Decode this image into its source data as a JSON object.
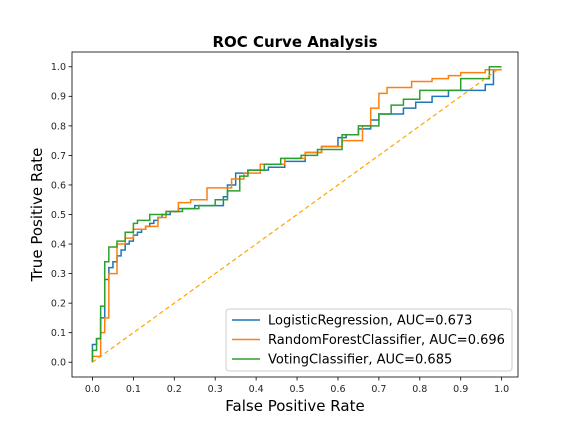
{
  "chart_data": {
    "type": "line",
    "title": "ROC Curve Analysis",
    "xlabel": "False Positive Rate",
    "ylabel": "True Positive Rate",
    "xlim": [
      -0.05,
      1.04
    ],
    "ylim": [
      -0.05,
      1.05
    ],
    "xticks": [
      0.0,
      0.1,
      0.2,
      0.3,
      0.4,
      0.5,
      0.6,
      0.7,
      0.8,
      0.9,
      1.0
    ],
    "yticks": [
      0.0,
      0.1,
      0.2,
      0.3,
      0.4,
      0.5,
      0.6,
      0.7,
      0.8,
      0.9,
      1.0
    ],
    "tick_labels": [
      "0.0",
      "0.1",
      "0.2",
      "0.3",
      "0.4",
      "0.5",
      "0.6",
      "0.7",
      "0.8",
      "0.9",
      "1.0"
    ],
    "grid": false,
    "legend_position": "lower-right",
    "series": [
      {
        "name": "LogisticRegression, AUC=0.673",
        "color": "#1f77b4",
        "x": [
          0.0,
          0.0,
          0.01,
          0.01,
          0.02,
          0.02,
          0.03,
          0.03,
          0.04,
          0.04,
          0.05,
          0.05,
          0.06,
          0.06,
          0.07,
          0.07,
          0.08,
          0.08,
          0.09,
          0.09,
          0.1,
          0.1,
          0.11,
          0.11,
          0.12,
          0.12,
          0.13,
          0.13,
          0.14,
          0.14,
          0.15,
          0.15,
          0.16,
          0.16,
          0.17,
          0.17,
          0.19,
          0.19,
          0.21,
          0.21,
          0.25,
          0.25,
          0.32,
          0.32,
          0.33,
          0.33,
          0.35,
          0.35,
          0.38,
          0.38,
          0.43,
          0.43,
          0.47,
          0.47,
          0.52,
          0.52,
          0.56,
          0.56,
          0.6,
          0.6,
          0.62,
          0.62,
          0.65,
          0.65,
          0.68,
          0.68,
          0.7,
          0.7,
          0.76,
          0.76,
          0.79,
          0.79,
          0.83,
          0.83,
          0.87,
          0.87,
          0.96,
          0.96,
          0.98,
          0.98,
          1.0
        ],
        "y": [
          0.0,
          0.06,
          0.06,
          0.08,
          0.08,
          0.15,
          0.15,
          0.28,
          0.28,
          0.32,
          0.32,
          0.34,
          0.34,
          0.36,
          0.36,
          0.38,
          0.38,
          0.4,
          0.4,
          0.41,
          0.41,
          0.43,
          0.43,
          0.44,
          0.44,
          0.45,
          0.45,
          0.46,
          0.46,
          0.47,
          0.47,
          0.48,
          0.48,
          0.49,
          0.49,
          0.5,
          0.5,
          0.51,
          0.51,
          0.52,
          0.52,
          0.53,
          0.53,
          0.56,
          0.56,
          0.6,
          0.6,
          0.64,
          0.64,
          0.65,
          0.65,
          0.66,
          0.66,
          0.68,
          0.68,
          0.71,
          0.71,
          0.73,
          0.73,
          0.76,
          0.76,
          0.77,
          0.77,
          0.79,
          0.79,
          0.82,
          0.82,
          0.84,
          0.84,
          0.86,
          0.86,
          0.88,
          0.88,
          0.9,
          0.9,
          0.92,
          0.92,
          0.94,
          0.94,
          0.99,
          0.99
        ]
      },
      {
        "name": "RandomForestClassifier, AUC=0.696",
        "color": "#ff7f0e",
        "x": [
          0.0,
          0.0,
          0.02,
          0.02,
          0.03,
          0.03,
          0.04,
          0.04,
          0.06,
          0.06,
          0.08,
          0.08,
          0.1,
          0.1,
          0.13,
          0.13,
          0.16,
          0.16,
          0.18,
          0.18,
          0.21,
          0.21,
          0.24,
          0.24,
          0.28,
          0.28,
          0.34,
          0.34,
          0.37,
          0.37,
          0.41,
          0.41,
          0.47,
          0.47,
          0.52,
          0.52,
          0.56,
          0.56,
          0.61,
          0.61,
          0.66,
          0.66,
          0.68,
          0.68,
          0.7,
          0.7,
          0.72,
          0.72,
          0.78,
          0.78,
          0.83,
          0.83,
          0.87,
          0.87,
          0.9,
          0.9,
          0.96,
          0.96,
          1.0
        ],
        "y": [
          0.0,
          0.02,
          0.02,
          0.1,
          0.1,
          0.15,
          0.15,
          0.3,
          0.3,
          0.4,
          0.4,
          0.42,
          0.42,
          0.45,
          0.45,
          0.46,
          0.46,
          0.49,
          0.49,
          0.51,
          0.51,
          0.54,
          0.54,
          0.55,
          0.55,
          0.59,
          0.59,
          0.62,
          0.62,
          0.64,
          0.64,
          0.67,
          0.67,
          0.69,
          0.69,
          0.71,
          0.71,
          0.73,
          0.73,
          0.75,
          0.75,
          0.8,
          0.8,
          0.86,
          0.86,
          0.91,
          0.91,
          0.93,
          0.93,
          0.95,
          0.95,
          0.96,
          0.96,
          0.97,
          0.97,
          0.98,
          0.98,
          0.99,
          0.99
        ]
      },
      {
        "name": "VotingClassifier, AUC=0.685",
        "color": "#2ca02c",
        "x": [
          0.0,
          0.0,
          0.01,
          0.01,
          0.02,
          0.02,
          0.03,
          0.03,
          0.04,
          0.04,
          0.06,
          0.06,
          0.08,
          0.08,
          0.1,
          0.1,
          0.11,
          0.11,
          0.14,
          0.14,
          0.18,
          0.18,
          0.22,
          0.22,
          0.26,
          0.26,
          0.3,
          0.3,
          0.33,
          0.33,
          0.36,
          0.36,
          0.38,
          0.38,
          0.42,
          0.42,
          0.46,
          0.46,
          0.51,
          0.51,
          0.55,
          0.55,
          0.61,
          0.61,
          0.65,
          0.65,
          0.7,
          0.7,
          0.73,
          0.73,
          0.76,
          0.76,
          0.8,
          0.8,
          0.9,
          0.9,
          0.97,
          0.97,
          1.0
        ],
        "y": [
          0.0,
          0.04,
          0.04,
          0.08,
          0.08,
          0.19,
          0.19,
          0.34,
          0.34,
          0.39,
          0.39,
          0.41,
          0.41,
          0.44,
          0.44,
          0.47,
          0.47,
          0.48,
          0.48,
          0.5,
          0.5,
          0.51,
          0.51,
          0.52,
          0.52,
          0.53,
          0.53,
          0.55,
          0.55,
          0.58,
          0.58,
          0.63,
          0.63,
          0.65,
          0.65,
          0.67,
          0.67,
          0.69,
          0.69,
          0.7,
          0.7,
          0.72,
          0.72,
          0.77,
          0.77,
          0.8,
          0.8,
          0.84,
          0.84,
          0.87,
          0.87,
          0.89,
          0.89,
          0.92,
          0.92,
          0.96,
          0.96,
          1.0,
          1.0
        ]
      },
      {
        "color": "#ffa500",
        "dashed": true,
        "x": [
          0.0,
          1.0
        ],
        "y": [
          0.0,
          1.0
        ]
      }
    ]
  }
}
